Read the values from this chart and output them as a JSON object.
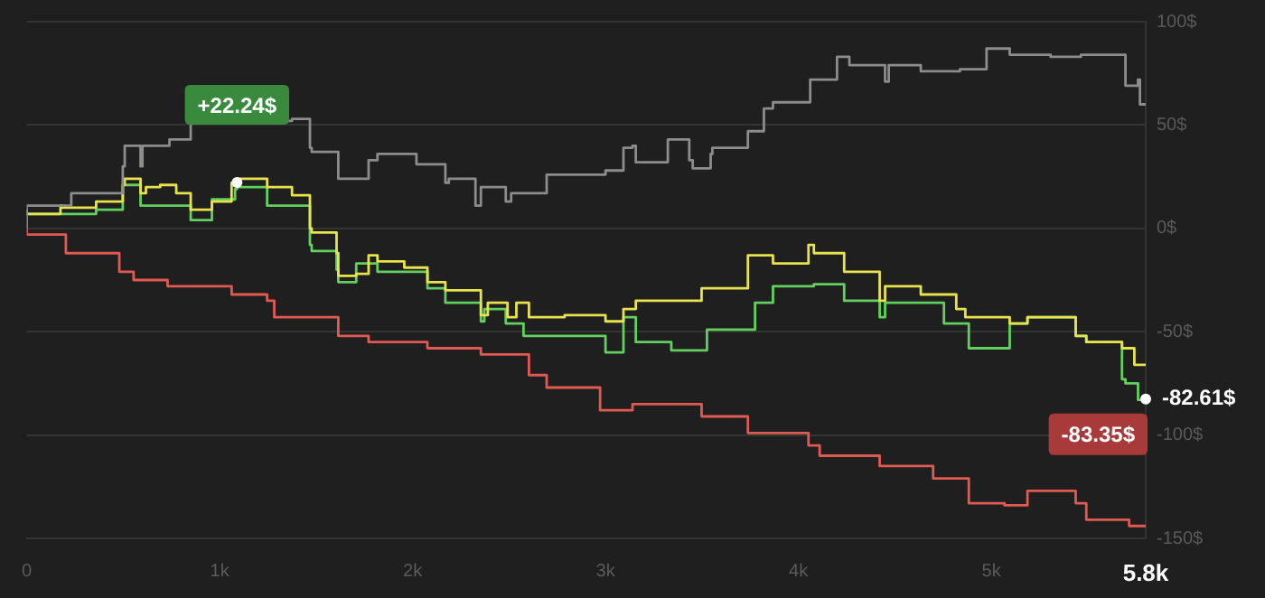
{
  "chart_data": {
    "type": "step",
    "marker": "none",
    "grid": "y",
    "legend": false,
    "xlim": [
      0,
      5800
    ],
    "xticks": [
      0,
      {
        "value": 1000,
        "label": "1k"
      },
      {
        "value": 2000,
        "label": "2k"
      },
      {
        "value": 3000,
        "label": "3k"
      },
      {
        "value": 4000,
        "label": "4k"
      },
      {
        "value": 5000,
        "label": "5k"
      },
      {
        "value": 5800,
        "label": "5.8k"
      }
    ],
    "ylim": [
      -150,
      100
    ],
    "yticks": [
      {
        "value": 100,
        "label": "100$"
      },
      {
        "value": 50,
        "label": "50$"
      },
      {
        "value": 0,
        "label": "0$"
      },
      {
        "value": -50,
        "label": "-50$"
      },
      {
        "value": -100,
        "label": "-100$"
      },
      {
        "value": -150,
        "label": "-150$"
      }
    ],
    "series": [
      {
        "color": "#8c8c8c",
        "x": [
          0,
          231,
          498,
          508,
          590,
          600,
          740,
          850,
          1375,
          1468,
          1477,
          1615,
          1625,
          1772,
          1818,
          2020,
          2170,
          2188,
          2326,
          2354,
          2483,
          2511,
          2695,
          3000,
          3093,
          3140,
          3157,
          3323,
          3434,
          3452,
          3545,
          3554,
          3738,
          3821,
          3868,
          4061,
          4080,
          4200,
          4264,
          4449,
          4468,
          4634,
          4837,
          4975,
          5095,
          5307,
          5464,
          5695,
          5760,
          5770,
          5800
        ],
        "values": [
          0,
          11,
          17,
          30,
          40,
          30,
          40,
          43,
          52,
          53,
          39,
          37,
          24,
          24,
          33,
          36,
          31,
          22,
          24,
          11,
          20,
          13,
          17,
          26,
          28,
          39,
          40,
          32,
          43,
          33,
          29,
          36,
          39,
          47,
          58,
          61,
          72,
          72,
          83,
          79,
          71,
          79,
          76,
          77,
          87,
          84,
          83,
          84,
          69,
          72,
          60
        ]
      },
      {
        "color": "#e8e24c",
        "x": [
          0,
          175,
          185,
          360,
          498,
          508,
          590,
          618,
          692,
          775,
          850,
          960,
          1062,
          1090,
          1246,
          1375,
          1468,
          1477,
          1606,
          1615,
          1708,
          1772,
          1818,
          1957,
          2077,
          2170,
          2354,
          2390,
          2492,
          2538,
          2603,
          2788,
          3000,
          3093,
          3157,
          3498,
          3738,
          3868,
          4052,
          4080,
          4237,
          4421,
          4449,
          4634,
          4818,
          4865,
          5095,
          5187,
          5437,
          5492,
          5677,
          5741,
          5800
        ],
        "values": [
          9,
          7,
          11,
          10,
          13,
          21,
          24,
          17,
          20,
          21,
          17,
          9,
          13,
          22,
          24,
          20,
          16,
          0,
          -2,
          -12,
          -23,
          -22,
          -13,
          -16,
          -19,
          -26,
          -30,
          -42,
          -36,
          -43,
          -36,
          -43,
          -42,
          -45,
          -39,
          -35,
          -29,
          -13,
          -17,
          -8,
          -12,
          -21,
          -35,
          -28,
          -32,
          -39,
          -43,
          -46,
          -43,
          -52,
          -55,
          -58,
          -66
        ]
      },
      {
        "color": "#62d05e",
        "x": [
          0,
          360,
          498,
          590,
          850,
          960,
          1080,
          1090,
          1246,
          1468,
          1477,
          1606,
          1615,
          1708,
          1818,
          2077,
          2170,
          2354,
          2372,
          2483,
          2575,
          2695,
          3000,
          3093,
          3157,
          3341,
          3526,
          3775,
          3868,
          4080,
          4237,
          4421,
          4449,
          4754,
          4883,
          5095,
          5187,
          5437,
          5492,
          5677,
          5695,
          5760,
          5800
        ],
        "values": [
          7,
          7,
          9,
          21,
          11,
          4,
          14,
          19,
          20,
          11,
          -8,
          -11,
          -20,
          -26,
          -17,
          -21,
          -29,
          -36,
          -45,
          -39,
          -46,
          -52,
          -52,
          -60,
          -43,
          -55,
          -59,
          -49,
          -36,
          -28,
          -27,
          -35,
          -43,
          -36,
          -46,
          -58,
          -46,
          -43,
          -52,
          -55,
          -73,
          -75,
          -83
        ]
      },
      {
        "color": "#e05a52",
        "x": [
          0,
          203,
          480,
          554,
          730,
          1062,
          1246,
          1283,
          1615,
          1772,
          2077,
          2354,
          2603,
          2695,
          2972,
          3140,
          3498,
          3738,
          4052,
          4110,
          4421,
          4698,
          4883,
          5068,
          5187,
          5437,
          5492,
          5714,
          5800
        ],
        "values": [
          0,
          -3,
          -12,
          -21,
          -25,
          -28,
          -32,
          -35,
          -43,
          -52,
          -55,
          -58,
          -61,
          -71,
          -77,
          -88,
          -85,
          -91,
          -99,
          -105,
          -110,
          -115,
          -121,
          -133,
          -134,
          -127,
          -133,
          -141,
          -144
        ]
      }
    ],
    "annotations": [
      {
        "text": "+22.24$",
        "x": 1090,
        "y": 22.24
      },
      {
        "text": "-82.61$",
        "x": 5800,
        "y": -82.61
      },
      "-83.35$"
    ]
  }
}
